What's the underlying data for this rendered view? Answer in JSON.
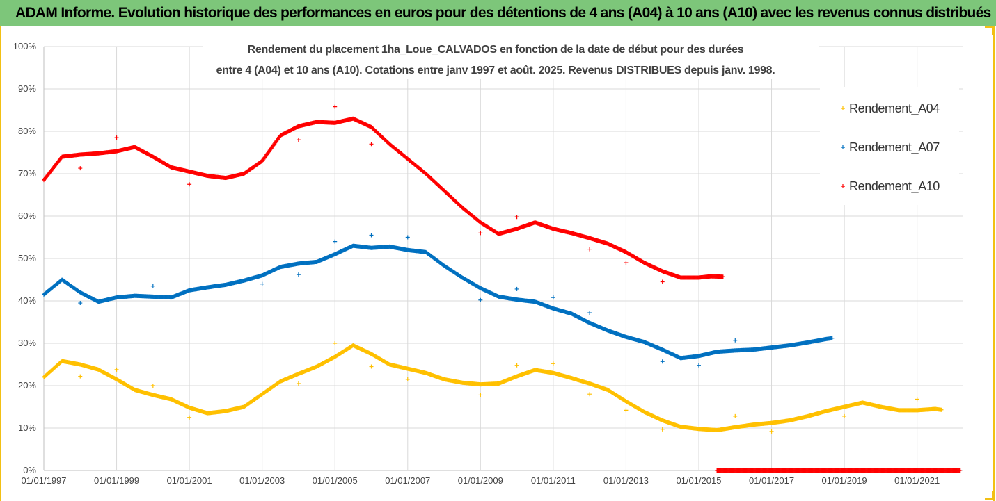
{
  "banner": {
    "title": "ADAM Informe. Evolution historique des performances en euros pour des détentions de 4 ans (A04) à 10 ans (A10) avec les revenus connus distribués"
  },
  "colors": {
    "banner": "#7dc67a",
    "frame": "#f2c014",
    "Rendement_A04": "#ffc000",
    "Rendement_A07": "#0070c0",
    "Rendement_A10": "#ff0000"
  },
  "chart_data": {
    "type": "scatter",
    "title_line1": "Rendement du placement 1ha_Loue_CALVADOS en fonction de la date de début pour des durées",
    "title_line2": "entre 4 (A04) et 10 ans (A10). Cotations entre janv 1997 et août. 2025. Revenus DISTRIBUES depuis janv. 1998.",
    "xlabel": "",
    "ylabel": "",
    "x_axis": "date",
    "xlim": [
      "01/01/1997",
      "01/04/2022"
    ],
    "ylim": [
      0,
      1
    ],
    "y_ticks": [
      "0%",
      "10%",
      "20%",
      "30%",
      "40%",
      "50%",
      "60%",
      "70%",
      "80%",
      "90%",
      "100%"
    ],
    "x_ticks": [
      "01/01/1997",
      "01/01/1999",
      "01/01/2001",
      "01/01/2003",
      "01/01/2005",
      "01/01/2007",
      "01/01/2009",
      "01/01/2011",
      "01/01/2013",
      "01/01/2015",
      "01/01/2017",
      "01/01/2019",
      "01/01/2021"
    ],
    "grid": true,
    "legend_position": "right",
    "series": [
      {
        "name": "Rendement_A04",
        "color": "#ffc000",
        "points": [
          [
            "1997-01",
            0.22
          ],
          [
            "1997-07",
            0.258
          ],
          [
            "1998-01",
            0.25
          ],
          [
            "1998-07",
            0.238
          ],
          [
            "1999-01",
            0.215
          ],
          [
            "1999-07",
            0.19
          ],
          [
            "2000-01",
            0.178
          ],
          [
            "2000-07",
            0.168
          ],
          [
            "2001-01",
            0.148
          ],
          [
            "2001-07",
            0.135
          ],
          [
            "2002-01",
            0.14
          ],
          [
            "2002-07",
            0.15
          ],
          [
            "2003-01",
            0.18
          ],
          [
            "2003-07",
            0.21
          ],
          [
            "2004-01",
            0.228
          ],
          [
            "2004-07",
            0.245
          ],
          [
            "2005-01",
            0.268
          ],
          [
            "2005-07",
            0.295
          ],
          [
            "2006-01",
            0.275
          ],
          [
            "2006-07",
            0.25
          ],
          [
            "2007-01",
            0.24
          ],
          [
            "2007-07",
            0.23
          ],
          [
            "2008-01",
            0.215
          ],
          [
            "2008-07",
            0.207
          ],
          [
            "2009-01",
            0.203
          ],
          [
            "2009-07",
            0.205
          ],
          [
            "2010-01",
            0.222
          ],
          [
            "2010-07",
            0.237
          ],
          [
            "2011-01",
            0.23
          ],
          [
            "2011-07",
            0.218
          ],
          [
            "2012-01",
            0.205
          ],
          [
            "2012-07",
            0.19
          ],
          [
            "2013-01",
            0.163
          ],
          [
            "2013-07",
            0.138
          ],
          [
            "2014-01",
            0.118
          ],
          [
            "2014-07",
            0.103
          ],
          [
            "2015-01",
            0.098
          ],
          [
            "2015-07",
            0.095
          ],
          [
            "2016-01",
            0.102
          ],
          [
            "2016-07",
            0.108
          ],
          [
            "2017-01",
            0.112
          ],
          [
            "2017-07",
            0.118
          ],
          [
            "2018-01",
            0.128
          ],
          [
            "2018-07",
            0.14
          ],
          [
            "2019-01",
            0.15
          ],
          [
            "2019-07",
            0.16
          ],
          [
            "2020-01",
            0.15
          ],
          [
            "2020-07",
            0.142
          ],
          [
            "2021-01",
            0.142
          ],
          [
            "2021-07",
            0.145
          ],
          [
            "2021-09",
            0.143
          ]
        ]
      },
      {
        "name": "Rendement_A07",
        "color": "#0070c0",
        "points": [
          [
            "1997-01",
            0.415
          ],
          [
            "1997-07",
            0.45
          ],
          [
            "1998-01",
            0.42
          ],
          [
            "1998-07",
            0.398
          ],
          [
            "1999-01",
            0.408
          ],
          [
            "1999-07",
            0.412
          ],
          [
            "2000-01",
            0.41
          ],
          [
            "2000-07",
            0.408
          ],
          [
            "2001-01",
            0.425
          ],
          [
            "2001-07",
            0.432
          ],
          [
            "2002-01",
            0.438
          ],
          [
            "2002-07",
            0.448
          ],
          [
            "2003-01",
            0.46
          ],
          [
            "2003-07",
            0.48
          ],
          [
            "2004-01",
            0.488
          ],
          [
            "2004-07",
            0.492
          ],
          [
            "2005-01",
            0.51
          ],
          [
            "2005-07",
            0.53
          ],
          [
            "2006-01",
            0.525
          ],
          [
            "2006-07",
            0.528
          ],
          [
            "2007-01",
            0.52
          ],
          [
            "2007-07",
            0.515
          ],
          [
            "2008-01",
            0.483
          ],
          [
            "2008-07",
            0.455
          ],
          [
            "2009-01",
            0.43
          ],
          [
            "2009-07",
            0.41
          ],
          [
            "2010-01",
            0.403
          ],
          [
            "2010-07",
            0.398
          ],
          [
            "2011-01",
            0.382
          ],
          [
            "2011-07",
            0.37
          ],
          [
            "2012-01",
            0.348
          ],
          [
            "2012-07",
            0.33
          ],
          [
            "2013-01",
            0.315
          ],
          [
            "2013-07",
            0.303
          ],
          [
            "2014-01",
            0.285
          ],
          [
            "2014-07",
            0.265
          ],
          [
            "2015-01",
            0.27
          ],
          [
            "2015-07",
            0.28
          ],
          [
            "2016-01",
            0.283
          ],
          [
            "2016-07",
            0.285
          ],
          [
            "2017-01",
            0.29
          ],
          [
            "2017-07",
            0.295
          ],
          [
            "2018-01",
            0.302
          ],
          [
            "2018-07",
            0.31
          ],
          [
            "2018-09",
            0.312
          ]
        ]
      },
      {
        "name": "Rendement_A10",
        "color": "#ff0000",
        "points": [
          [
            "1997-01",
            0.685
          ],
          [
            "1997-07",
            0.74
          ],
          [
            "1998-01",
            0.745
          ],
          [
            "1998-07",
            0.748
          ],
          [
            "1999-01",
            0.753
          ],
          [
            "1999-07",
            0.763
          ],
          [
            "2000-01",
            0.74
          ],
          [
            "2000-07",
            0.715
          ],
          [
            "2001-01",
            0.705
          ],
          [
            "2001-07",
            0.695
          ],
          [
            "2002-01",
            0.69
          ],
          [
            "2002-07",
            0.7
          ],
          [
            "2003-01",
            0.73
          ],
          [
            "2003-07",
            0.79
          ],
          [
            "2004-01",
            0.812
          ],
          [
            "2004-07",
            0.822
          ],
          [
            "2005-01",
            0.82
          ],
          [
            "2005-07",
            0.83
          ],
          [
            "2006-01",
            0.81
          ],
          [
            "2006-07",
            0.77
          ],
          [
            "2007-01",
            0.735
          ],
          [
            "2007-07",
            0.7
          ],
          [
            "2008-01",
            0.66
          ],
          [
            "2008-07",
            0.62
          ],
          [
            "2009-01",
            0.585
          ],
          [
            "2009-07",
            0.558
          ],
          [
            "2010-01",
            0.57
          ],
          [
            "2010-07",
            0.585
          ],
          [
            "2011-01",
            0.57
          ],
          [
            "2011-07",
            0.56
          ],
          [
            "2012-01",
            0.548
          ],
          [
            "2012-07",
            0.535
          ],
          [
            "2013-01",
            0.515
          ],
          [
            "2013-07",
            0.49
          ],
          [
            "2014-01",
            0.47
          ],
          [
            "2014-07",
            0.455
          ],
          [
            "2015-01",
            0.455
          ],
          [
            "2015-05",
            0.458
          ],
          [
            "2015-09",
            0.457
          ]
        ]
      },
      {
        "name": "Rendement_A10",
        "color": "#ff0000",
        "points": [
          [
            "2015-07",
            0.0
          ],
          [
            "2022-03",
            0.0
          ]
        ]
      }
    ],
    "outliers": {
      "Rendement_A04": [
        [
          "1998-01",
          0.222
        ],
        [
          "1999-01",
          0.238
        ],
        [
          "2000-01",
          0.2
        ],
        [
          "2001-01",
          0.125
        ],
        [
          "2004-01",
          0.205
        ],
        [
          "2005-01",
          0.3
        ],
        [
          "2006-01",
          0.245
        ],
        [
          "2007-01",
          0.215
        ],
        [
          "2009-01",
          0.178
        ],
        [
          "2010-01",
          0.248
        ],
        [
          "2011-01",
          0.252
        ],
        [
          "2012-01",
          0.18
        ],
        [
          "2013-01",
          0.142
        ],
        [
          "2014-01",
          0.097
        ],
        [
          "2016-01",
          0.128
        ],
        [
          "2017-01",
          0.092
        ],
        [
          "2019-01",
          0.128
        ],
        [
          "2021-01",
          0.168
        ]
      ],
      "Rendement_A07": [
        [
          "1998-01",
          0.395
        ],
        [
          "2000-01",
          0.435
        ],
        [
          "2003-01",
          0.44
        ],
        [
          "2004-01",
          0.462
        ],
        [
          "2005-01",
          0.54
        ],
        [
          "2006-01",
          0.555
        ],
        [
          "2007-01",
          0.55
        ],
        [
          "2009-01",
          0.402
        ],
        [
          "2010-01",
          0.428
        ],
        [
          "2011-01",
          0.408
        ],
        [
          "2012-01",
          0.372
        ],
        [
          "2014-01",
          0.257
        ],
        [
          "2015-01",
          0.248
        ],
        [
          "2016-01",
          0.307
        ]
      ],
      "Rendement_A10": [
        [
          "1998-01",
          0.713
        ],
        [
          "1999-01",
          0.785
        ],
        [
          "2001-01",
          0.675
        ],
        [
          "2004-01",
          0.78
        ],
        [
          "2005-01",
          0.858
        ],
        [
          "2006-01",
          0.77
        ],
        [
          "2009-01",
          0.56
        ],
        [
          "2010-01",
          0.598
        ],
        [
          "2012-01",
          0.522
        ],
        [
          "2013-01",
          0.49
        ],
        [
          "2014-01",
          0.445
        ]
      ]
    }
  }
}
